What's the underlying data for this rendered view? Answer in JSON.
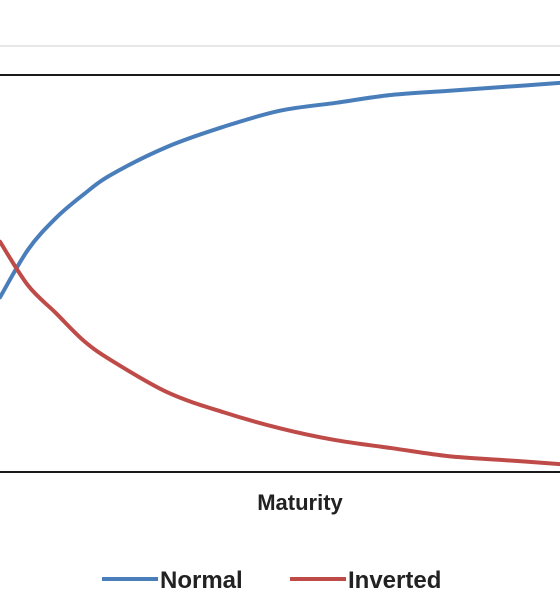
{
  "chart_data": {
    "type": "line",
    "title": "",
    "xlabel": "Maturity",
    "ylabel": "",
    "xlim": [
      0,
      1
    ],
    "ylim": [
      0,
      1
    ],
    "grid": false,
    "legend_position": "bottom",
    "series": [
      {
        "name": "Normal",
        "color": "#4a7ebb",
        "x": [
          0,
          0.05,
          0.1,
          0.15,
          0.2,
          0.3,
          0.4,
          0.5,
          0.6,
          0.7,
          0.8,
          0.9,
          1.0
        ],
        "y": [
          0.44,
          0.56,
          0.64,
          0.7,
          0.75,
          0.82,
          0.87,
          0.91,
          0.93,
          0.95,
          0.96,
          0.97,
          0.98
        ]
      },
      {
        "name": "Inverted",
        "color": "#be4b48",
        "x": [
          0,
          0.05,
          0.1,
          0.15,
          0.2,
          0.3,
          0.4,
          0.5,
          0.6,
          0.7,
          0.8,
          0.9,
          1.0
        ],
        "y": [
          0.58,
          0.47,
          0.4,
          0.33,
          0.28,
          0.2,
          0.15,
          0.11,
          0.08,
          0.06,
          0.04,
          0.03,
          0.02
        ]
      }
    ]
  }
}
